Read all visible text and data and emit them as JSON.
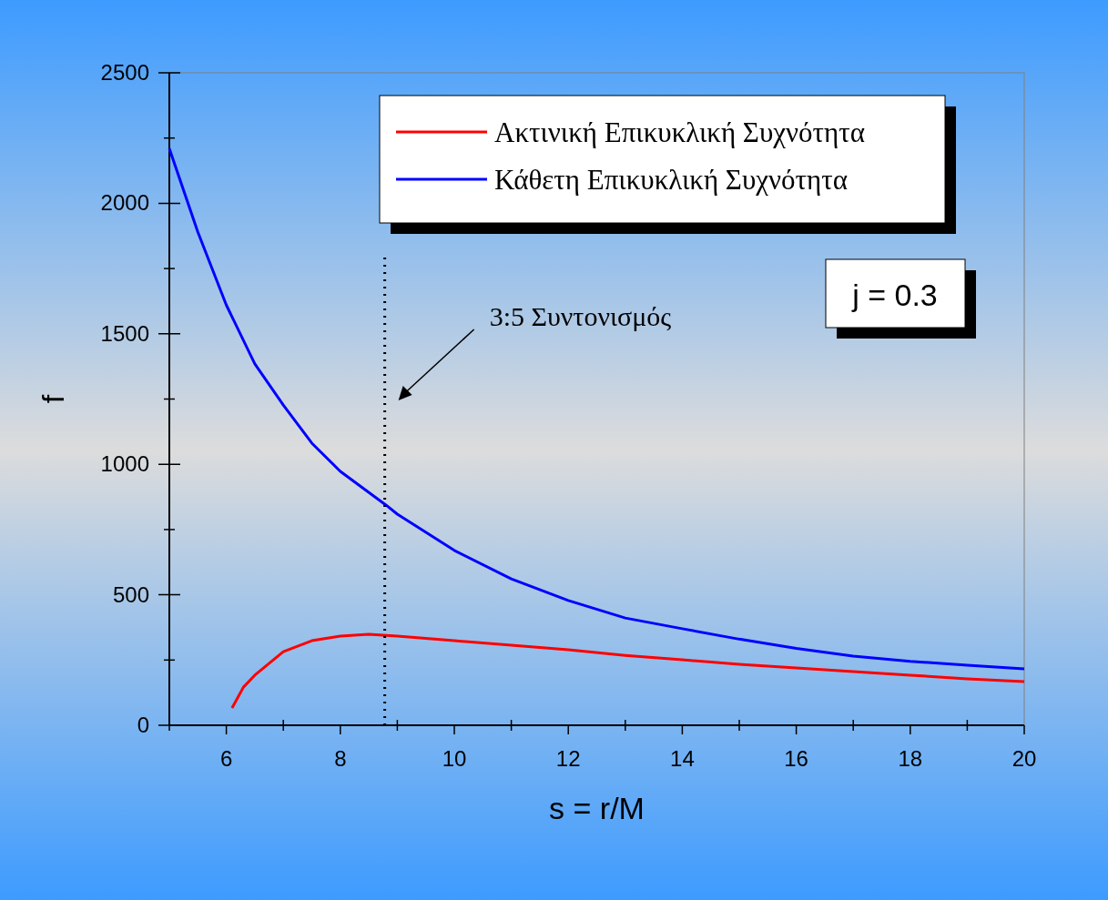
{
  "chart_data": {
    "type": "line",
    "xlabel": "s = r/M",
    "ylabel": "f",
    "xlim": [
      5,
      20
    ],
    "ylim": [
      0,
      2500
    ],
    "xticks": [
      6,
      8,
      10,
      12,
      14,
      16,
      18,
      20
    ],
    "yticks": [
      0,
      500,
      1000,
      1500,
      2000,
      2500
    ],
    "grid": false,
    "legend": "top right",
    "line_style": "solid",
    "series": [
      {
        "name": "Ακτινική Επικυκλική Συχνότητα",
        "color": "#ff0000",
        "x": [
          6.1,
          6.3,
          6.5,
          7,
          7.5,
          8,
          8.5,
          9,
          10,
          11,
          12,
          13,
          14,
          15,
          16,
          17,
          18,
          19,
          20
        ],
        "values": [
          66,
          146,
          192,
          282,
          324,
          342,
          349,
          342,
          324,
          307,
          289,
          268,
          251,
          234,
          220,
          206,
          192,
          178,
          167
        ]
      },
      {
        "name": "Κάθετη Επικυκλική Συχνότητα",
        "color": "#0000ff",
        "x": [
          5,
          5.5,
          6,
          6.5,
          7,
          7.5,
          8,
          8.8,
          9,
          10,
          11,
          12,
          13,
          14,
          15,
          16,
          17,
          18,
          19,
          20
        ],
        "values": [
          2210,
          1890,
          1610,
          1385,
          1227,
          1081,
          973,
          844,
          809,
          670,
          561,
          478,
          411,
          370,
          330,
          295,
          265,
          245,
          230,
          216
        ]
      }
    ],
    "ref_lines": [
      {
        "axis": "x",
        "value": 8.78,
        "line_style": "dotted",
        "color": "#000000"
      }
    ],
    "annotations": [
      "3:5 Συντονισμός",
      "j = 0.3"
    ]
  }
}
